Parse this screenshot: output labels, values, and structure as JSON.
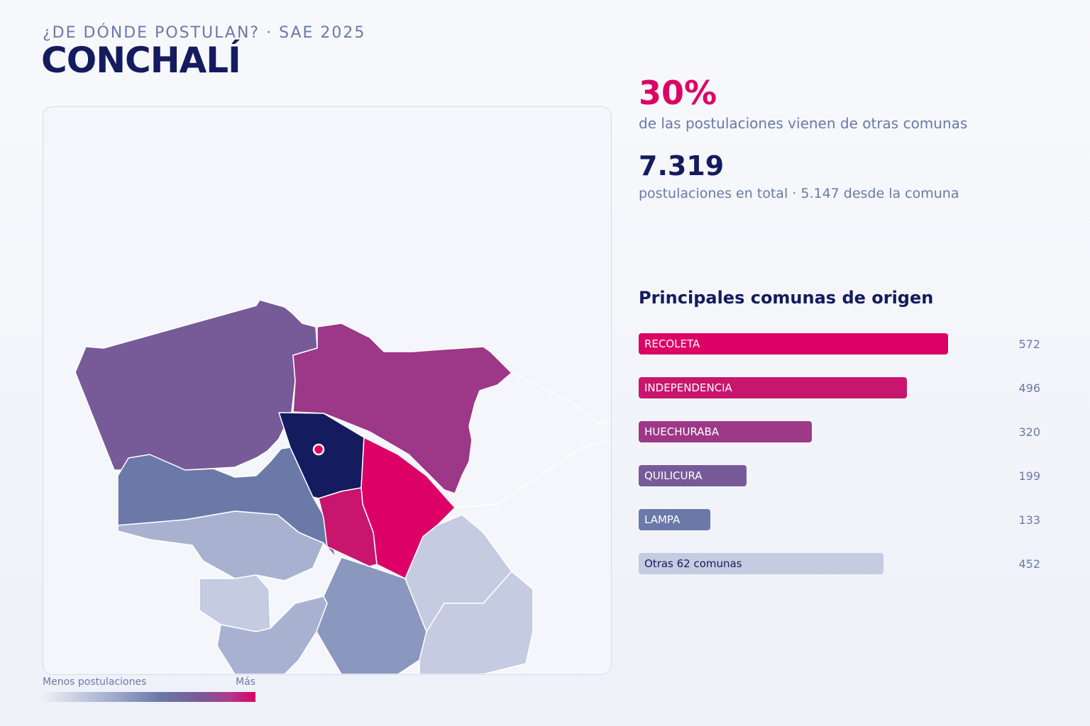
{
  "header": {
    "kicker": "¿DE DÓNDE POSTULAN? · SAE 2025",
    "title": "CONCHALÍ"
  },
  "stats": {
    "external_pct": "30%",
    "external_desc": "de las postulaciones vienen de otras comunas",
    "total": "7.319",
    "total_desc": "postulaciones en total · 5.147 desde la comuna"
  },
  "legend": {
    "min_label": "Menos postulaciones",
    "max_label": "Más"
  },
  "chart_data": {
    "type": "bar",
    "title": "Principales comunas de origen",
    "categories": [
      "RECOLETA",
      "INDEPENDENCIA",
      "HUECHURABA",
      "QUILICURA",
      "LAMPA",
      "Otras 62 comunas"
    ],
    "values": [
      572,
      496,
      320,
      199,
      133,
      452
    ],
    "colors": [
      "#dc0066",
      "#c8156e",
      "#9c3887",
      "#775a98",
      "#6b79a8",
      "#c5cbe0"
    ]
  },
  "colors": {
    "accent": "#dc0066",
    "navy": "#141b5e",
    "muted": "#6b79a8"
  }
}
